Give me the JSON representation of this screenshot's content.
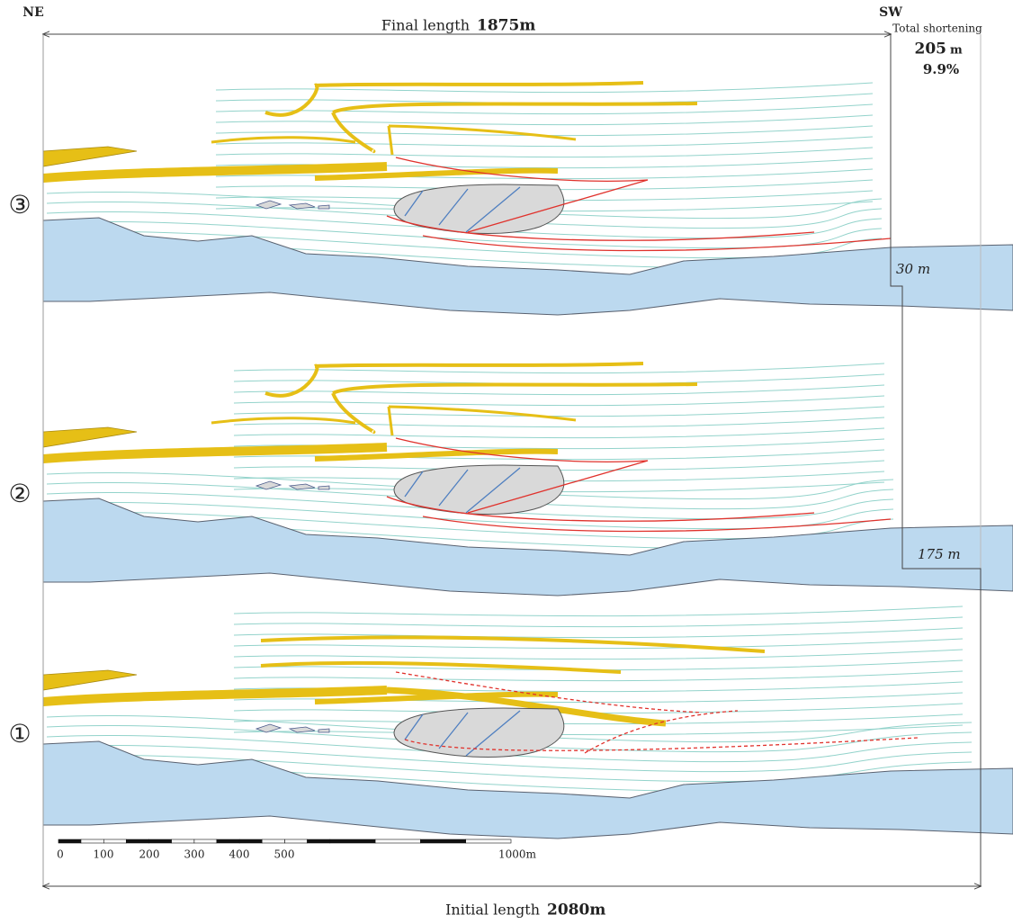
{
  "header": {
    "left_direction": "NE",
    "right_direction": "SW",
    "final_length_label": "Final length",
    "final_length_value": "1875m"
  },
  "total_shortening": {
    "label": "Total shortening",
    "value": "205",
    "unit": "m",
    "percent": "9.9%"
  },
  "offsets": [
    "30 m",
    "175 m"
  ],
  "stages": [
    "③",
    "②",
    "①"
  ],
  "scale_bar": {
    "labels": [
      "0",
      "100",
      "200",
      "300",
      "400",
      "500",
      "1000m"
    ]
  },
  "footer": {
    "initial_length_label": "Initial length",
    "initial_length_value": "2080m"
  }
}
